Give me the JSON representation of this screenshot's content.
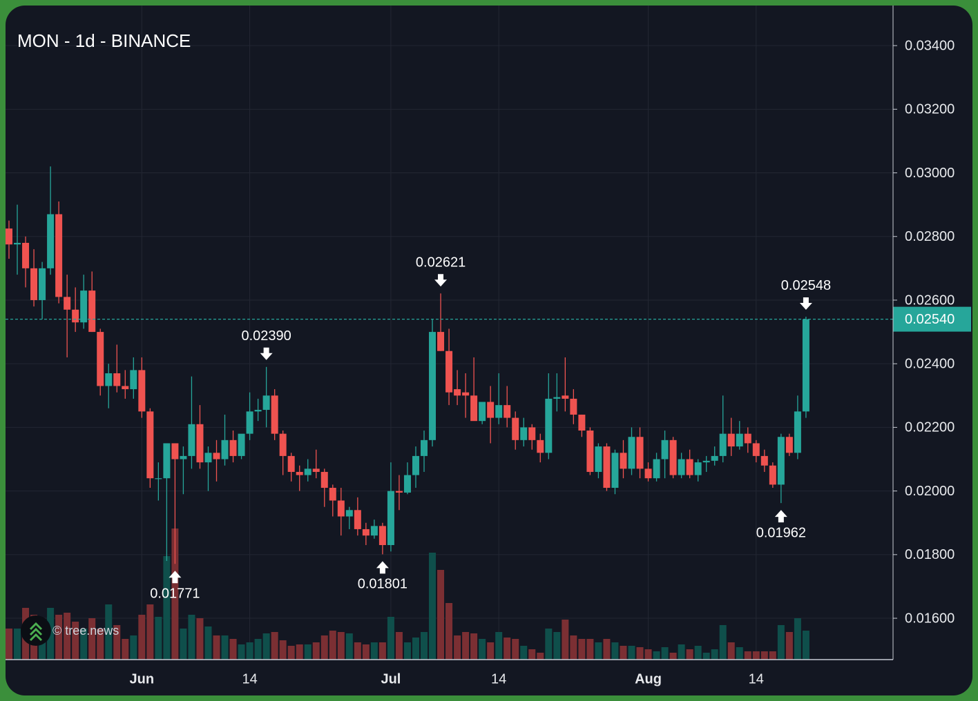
{
  "chart_data": {
    "type": "candlestick",
    "title": "MON - 1d - BINANCE",
    "watermark": "© tree.news",
    "x": [
      "May 16",
      "May 17",
      "May 18",
      "May 19",
      "May 20",
      "May 21",
      "May 22",
      "May 23",
      "May 24",
      "May 25",
      "May 26",
      "May 27",
      "May 28",
      "May 29",
      "May 30",
      "May 31",
      "Jun 1",
      "Jun 2",
      "Jun 3",
      "Jun 4",
      "Jun 5",
      "Jun 6",
      "Jun 7",
      "Jun 8",
      "Jun 9",
      "Jun 10",
      "Jun 11",
      "Jun 12",
      "Jun 13",
      "Jun 14",
      "Jun 15",
      "Jun 16",
      "Jun 17",
      "Jun 18",
      "Jun 19",
      "Jun 20",
      "Jun 21",
      "Jun 22",
      "Jun 23",
      "Jun 24",
      "Jun 25",
      "Jun 26",
      "Jun 27",
      "Jun 28",
      "Jun 29",
      "Jun 30",
      "Jul 1",
      "Jul 2",
      "Jul 3",
      "Jul 4",
      "Jul 5",
      "Jul 6",
      "Jul 7",
      "Jul 8",
      "Jul 9",
      "Jul 10",
      "Jul 11",
      "Jul 12",
      "Jul 13",
      "Jul 14",
      "Jul 15",
      "Jul 16",
      "Jul 17",
      "Jul 18",
      "Jul 19",
      "Jul 20",
      "Jul 21",
      "Jul 22",
      "Jul 23",
      "Jul 24",
      "Jul 25",
      "Jul 26",
      "Jul 27",
      "Jul 28",
      "Jul 29",
      "Jul 30",
      "Jul 31",
      "Aug 1",
      "Aug 2",
      "Aug 3",
      "Aug 4",
      "Aug 5",
      "Aug 6",
      "Aug 7",
      "Aug 8",
      "Aug 9",
      "Aug 10",
      "Aug 11",
      "Aug 12",
      "Aug 13",
      "Aug 14",
      "Aug 15",
      "Aug 16",
      "Aug 17",
      "Aug 18",
      "Aug 19",
      "Aug 20"
    ],
    "open": [
      0.02825,
      0.02775,
      0.0278,
      0.027,
      0.026,
      0.027,
      0.0287,
      0.0261,
      0.0257,
      0.0253,
      0.0263,
      0.025,
      0.0233,
      0.0237,
      0.0233,
      0.0232,
      0.0238,
      0.0225,
      0.0204,
      0.0204,
      0.0215,
      0.021,
      0.0211,
      0.0221,
      0.0209,
      0.0212,
      0.021,
      0.0216,
      0.0211,
      0.0218,
      0.0225,
      0.02255,
      0.023,
      0.0218,
      0.0211,
      0.0206,
      0.0205,
      0.0207,
      0.0206,
      0.0201,
      0.0197,
      0.0192,
      0.0194,
      0.0188,
      0.0186,
      0.0189,
      0.0183,
      0.02,
      0.01995,
      0.0205,
      0.0211,
      0.0216,
      0.025,
      0.0244,
      0.0232,
      0.0231,
      0.023,
      0.0222,
      0.0228,
      0.0223,
      0.0227,
      0.0223,
      0.0216,
      0.022,
      0.0216,
      0.0212,
      0.0229,
      0.023,
      0.0229,
      0.0224,
      0.0219,
      0.0206,
      0.0214,
      0.0201,
      0.0212,
      0.0207,
      0.0217,
      0.0207,
      0.0204,
      0.021,
      0.0216,
      0.0205,
      0.021,
      0.0205,
      0.0209,
      0.02095,
      0.0211,
      0.0218,
      0.0214,
      0.0218,
      0.0215,
      0.0211,
      0.0208,
      0.0202,
      0.0217,
      0.0212,
      0.0225
    ],
    "high": [
      0.0285,
      0.029,
      0.028,
      0.0276,
      0.0272,
      0.0302,
      0.0291,
      0.0268,
      0.0264,
      0.0268,
      0.0269,
      0.0251,
      0.024,
      0.0246,
      0.0238,
      0.0242,
      0.0242,
      0.0226,
      0.0209,
      0.0215,
      0.0215,
      0.0214,
      0.0236,
      0.0227,
      0.0214,
      0.0216,
      0.0224,
      0.0219,
      0.0217,
      0.0231,
      0.0229,
      0.0239,
      0.0232,
      0.0219,
      0.0212,
      0.0208,
      0.021,
      0.0213,
      0.0207,
      0.0202,
      0.0201,
      0.0195,
      0.0198,
      0.019,
      0.0191,
      0.019,
      0.0209,
      0.0205,
      0.0209,
      0.0214,
      0.0219,
      0.0254,
      0.02621,
      0.0251,
      0.0238,
      0.0237,
      0.0242,
      0.0228,
      0.0233,
      0.0237,
      0.0233,
      0.0225,
      0.0223,
      0.0221,
      0.0218,
      0.0237,
      0.0237,
      0.0242,
      0.0232,
      0.0224,
      0.022,
      0.0215,
      0.0215,
      0.0213,
      0.0216,
      0.022,
      0.022,
      0.0209,
      0.0212,
      0.0219,
      0.0217,
      0.0212,
      0.0213,
      0.021,
      0.0211,
      0.0214,
      0.023,
      0.0223,
      0.0222,
      0.022,
      0.0216,
      0.0213,
      0.0209,
      0.0218,
      0.0218,
      0.023,
      0.02548
    ],
    "low": [
      0.0273,
      0.0268,
      0.0264,
      0.0258,
      0.0254,
      0.0268,
      0.0259,
      0.0242,
      0.025,
      0.0251,
      0.025,
      0.023,
      0.0226,
      0.0231,
      0.0229,
      0.0229,
      0.0223,
      0.0201,
      0.0197,
      0.0178,
      0.01771,
      0.0199,
      0.0207,
      0.0207,
      0.02,
      0.0203,
      0.0208,
      0.0209,
      0.021,
      0.0216,
      0.0222,
      0.022,
      0.0216,
      0.0205,
      0.0203,
      0.02,
      0.0203,
      0.0204,
      0.0195,
      0.0192,
      0.0186,
      0.0188,
      0.0186,
      0.0183,
      0.0185,
      0.01801,
      0.0181,
      0.0194,
      0.0199,
      0.0201,
      0.0206,
      0.0214,
      0.0244,
      0.0227,
      0.0227,
      0.0223,
      0.0223,
      0.0221,
      0.0215,
      0.0221,
      0.022,
      0.0213,
      0.0214,
      0.0213,
      0.0209,
      0.021,
      0.0225,
      0.0225,
      0.0221,
      0.0217,
      0.0205,
      0.0204,
      0.02,
      0.0199,
      0.0204,
      0.0205,
      0.0204,
      0.0203,
      0.0203,
      0.0204,
      0.0204,
      0.0204,
      0.0204,
      0.0203,
      0.0206,
      0.0208,
      0.0209,
      0.0211,
      0.0213,
      0.0212,
      0.0209,
      0.0206,
      0.0201,
      0.01962,
      0.0211,
      0.021,
      0.0223
    ],
    "close": [
      0.02775,
      0.0278,
      0.027,
      0.026,
      0.027,
      0.0287,
      0.0261,
      0.0257,
      0.0253,
      0.0263,
      0.025,
      0.0233,
      0.0237,
      0.0233,
      0.0232,
      0.0238,
      0.0225,
      0.0204,
      0.0204,
      0.0215,
      0.021,
      0.0211,
      0.0221,
      0.0209,
      0.0212,
      0.021,
      0.0216,
      0.0211,
      0.0218,
      0.0225,
      0.02255,
      0.023,
      0.0218,
      0.0211,
      0.0206,
      0.0205,
      0.0207,
      0.0206,
      0.0201,
      0.0197,
      0.0192,
      0.0194,
      0.0188,
      0.0186,
      0.0189,
      0.0183,
      0.02,
      0.01995,
      0.0205,
      0.0211,
      0.0216,
      0.025,
      0.0244,
      0.0231,
      0.023,
      0.023,
      0.0222,
      0.0228,
      0.0223,
      0.0227,
      0.0223,
      0.0216,
      0.022,
      0.0216,
      0.0212,
      0.0229,
      0.02295,
      0.0229,
      0.0224,
      0.0219,
      0.0206,
      0.0214,
      0.0201,
      0.0212,
      0.0207,
      0.0217,
      0.0207,
      0.0204,
      0.021,
      0.0216,
      0.0205,
      0.021,
      0.0205,
      0.0209,
      0.02095,
      0.0211,
      0.0218,
      0.0214,
      0.0218,
      0.0215,
      0.0211,
      0.0208,
      0.0202,
      0.0217,
      0.0212,
      0.0225,
      0.0254
    ],
    "volume": [
      45,
      45,
      75,
      65,
      50,
      75,
      65,
      68,
      55,
      45,
      60,
      45,
      80,
      50,
      30,
      35,
      65,
      80,
      62,
      150,
      190,
      45,
      65,
      60,
      48,
      35,
      35,
      30,
      22,
      25,
      30,
      38,
      40,
      28,
      20,
      22,
      22,
      25,
      35,
      42,
      40,
      38,
      25,
      22,
      25,
      25,
      62,
      40,
      25,
      32,
      40,
      155,
      130,
      82,
      35,
      40,
      38,
      30,
      25,
      40,
      32,
      30,
      20,
      15,
      10,
      45,
      40,
      58,
      35,
      30,
      30,
      25,
      30,
      25,
      20,
      20,
      18,
      15,
      12,
      18,
      10,
      22,
      15,
      20,
      10,
      15,
      50,
      25,
      18,
      12,
      12,
      12,
      12,
      50,
      40,
      60,
      42
    ],
    "up_color": "#26a69a",
    "down_color": "#ef5350",
    "up_volume_color": "#0f4f4b",
    "down_volume_color": "#7b2f33",
    "ylim": [
      0.0147,
      0.03526
    ],
    "yticks": [
      {
        "value": 0.016,
        "label": "0.01600"
      },
      {
        "value": 0.018,
        "label": "0.01800"
      },
      {
        "value": 0.02,
        "label": "0.02000"
      },
      {
        "value": 0.022,
        "label": "0.02200"
      },
      {
        "value": 0.024,
        "label": "0.02400"
      },
      {
        "value": 0.026,
        "label": "0.02600"
      },
      {
        "value": 0.028,
        "label": "0.02800"
      },
      {
        "value": 0.03,
        "label": "0.03000"
      },
      {
        "value": 0.032,
        "label": "0.03200"
      },
      {
        "value": 0.034,
        "label": "0.03400"
      }
    ],
    "xticks": [
      {
        "value": "Jun 1",
        "label": "Jun"
      },
      {
        "value": "Jun 14",
        "label": "14"
      },
      {
        "value": "Jul 1",
        "label": "Jul"
      },
      {
        "value": "Jul 14",
        "label": "14"
      },
      {
        "value": "Aug 1",
        "label": "Aug"
      },
      {
        "value": "Aug 14",
        "label": "14"
      }
    ],
    "grid": true,
    "last_price": {
      "value": 0.0254,
      "label": "0.02540"
    },
    "annotations": [
      {
        "value": 0.0239,
        "label": "0.02390"
      },
      {
        "value": 0.02621,
        "label": "0.02621"
      },
      {
        "value": 0.02548,
        "label": "0.02548"
      },
      {
        "value": 0.01771,
        "label": "0.01771"
      },
      {
        "value": 0.01801,
        "label": "0.01801"
      },
      {
        "value": 0.01962,
        "label": "0.01962"
      }
    ]
  }
}
